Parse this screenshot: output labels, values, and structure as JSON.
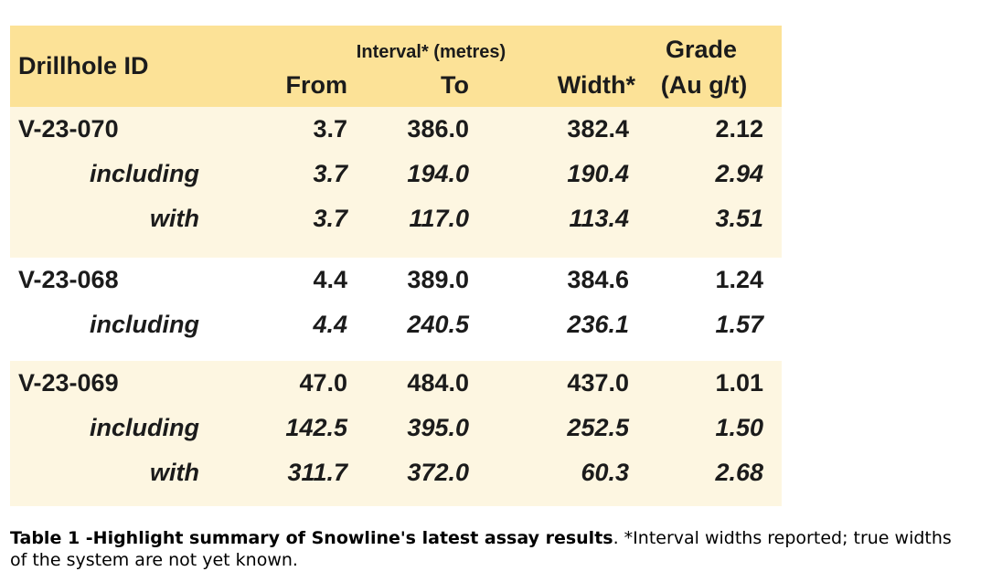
{
  "table": {
    "header": {
      "drillhole_id": "Drillhole ID",
      "interval_group": "Interval* (metres)",
      "grade_line1": "Grade",
      "from": "From",
      "to": "To",
      "width": "Width*",
      "grade_unit": "(Au g/t)"
    },
    "groups": [
      {
        "band": "cream",
        "rows": [
          {
            "id": "V-23-070",
            "style": "main",
            "from": "3.7",
            "to": "386.0",
            "width": "382.4",
            "grade": "2.12"
          },
          {
            "id": "including",
            "style": "sub",
            "from": "3.7",
            "to": "194.0",
            "width": "190.4",
            "grade": "2.94"
          },
          {
            "id": "with",
            "style": "sub",
            "from": "3.7",
            "to": "117.0",
            "width": "113.4",
            "grade": "3.51"
          }
        ]
      },
      {
        "band": "white",
        "rows": [
          {
            "id": "V-23-068",
            "style": "main",
            "from": "4.4",
            "to": "389.0",
            "width": "384.6",
            "grade": "1.24"
          },
          {
            "id": "including",
            "style": "sub",
            "from": "4.4",
            "to": "240.5",
            "width": "236.1",
            "grade": "1.57"
          }
        ]
      },
      {
        "band": "cream",
        "rows": [
          {
            "id": "V-23-069",
            "style": "main",
            "from": "47.0",
            "to": "484.0",
            "width": "437.0",
            "grade": "1.01"
          },
          {
            "id": "including",
            "style": "sub",
            "from": "142.5",
            "to": "395.0",
            "width": "252.5",
            "grade": "1.50"
          },
          {
            "id": "with",
            "style": "sub",
            "from": "311.7",
            "to": "372.0",
            "width": "60.3",
            "grade": "2.68"
          }
        ]
      }
    ]
  },
  "caption": {
    "bold": "Table 1 -Highlight summary of Snowline's latest assay results",
    "regular_line1": ". *Interval widths reported; true widths",
    "line2": "of the system are not yet known."
  },
  "colors": {
    "header_bg": "#FCE297",
    "band_cream": "#FDF6E1",
    "band_white": "#FFFFFF",
    "text": "#1b1b1b",
    "page_bg": "#FFFFFF"
  },
  "chart_data": {
    "type": "table",
    "title": "Table 1 - Highlight summary of Snowline's latest assay results",
    "columns": [
      "Drillhole ID",
      "From (m)",
      "To (m)",
      "Width* (m)",
      "Grade (Au g/t)"
    ],
    "rows": [
      [
        "V-23-070",
        3.7,
        386.0,
        382.4,
        2.12
      ],
      [
        "including",
        3.7,
        194.0,
        190.4,
        2.94
      ],
      [
        "with",
        3.7,
        117.0,
        113.4,
        3.51
      ],
      [
        "V-23-068",
        4.4,
        389.0,
        384.6,
        1.24
      ],
      [
        "including",
        4.4,
        240.5,
        236.1,
        1.57
      ],
      [
        "V-23-069",
        47.0,
        484.0,
        437.0,
        1.01
      ],
      [
        "including",
        142.5,
        395.0,
        252.5,
        1.5
      ],
      [
        "with",
        311.7,
        372.0,
        60.3,
        2.68
      ]
    ],
    "notes": "*Interval widths reported; true widths of the system are not yet known."
  }
}
